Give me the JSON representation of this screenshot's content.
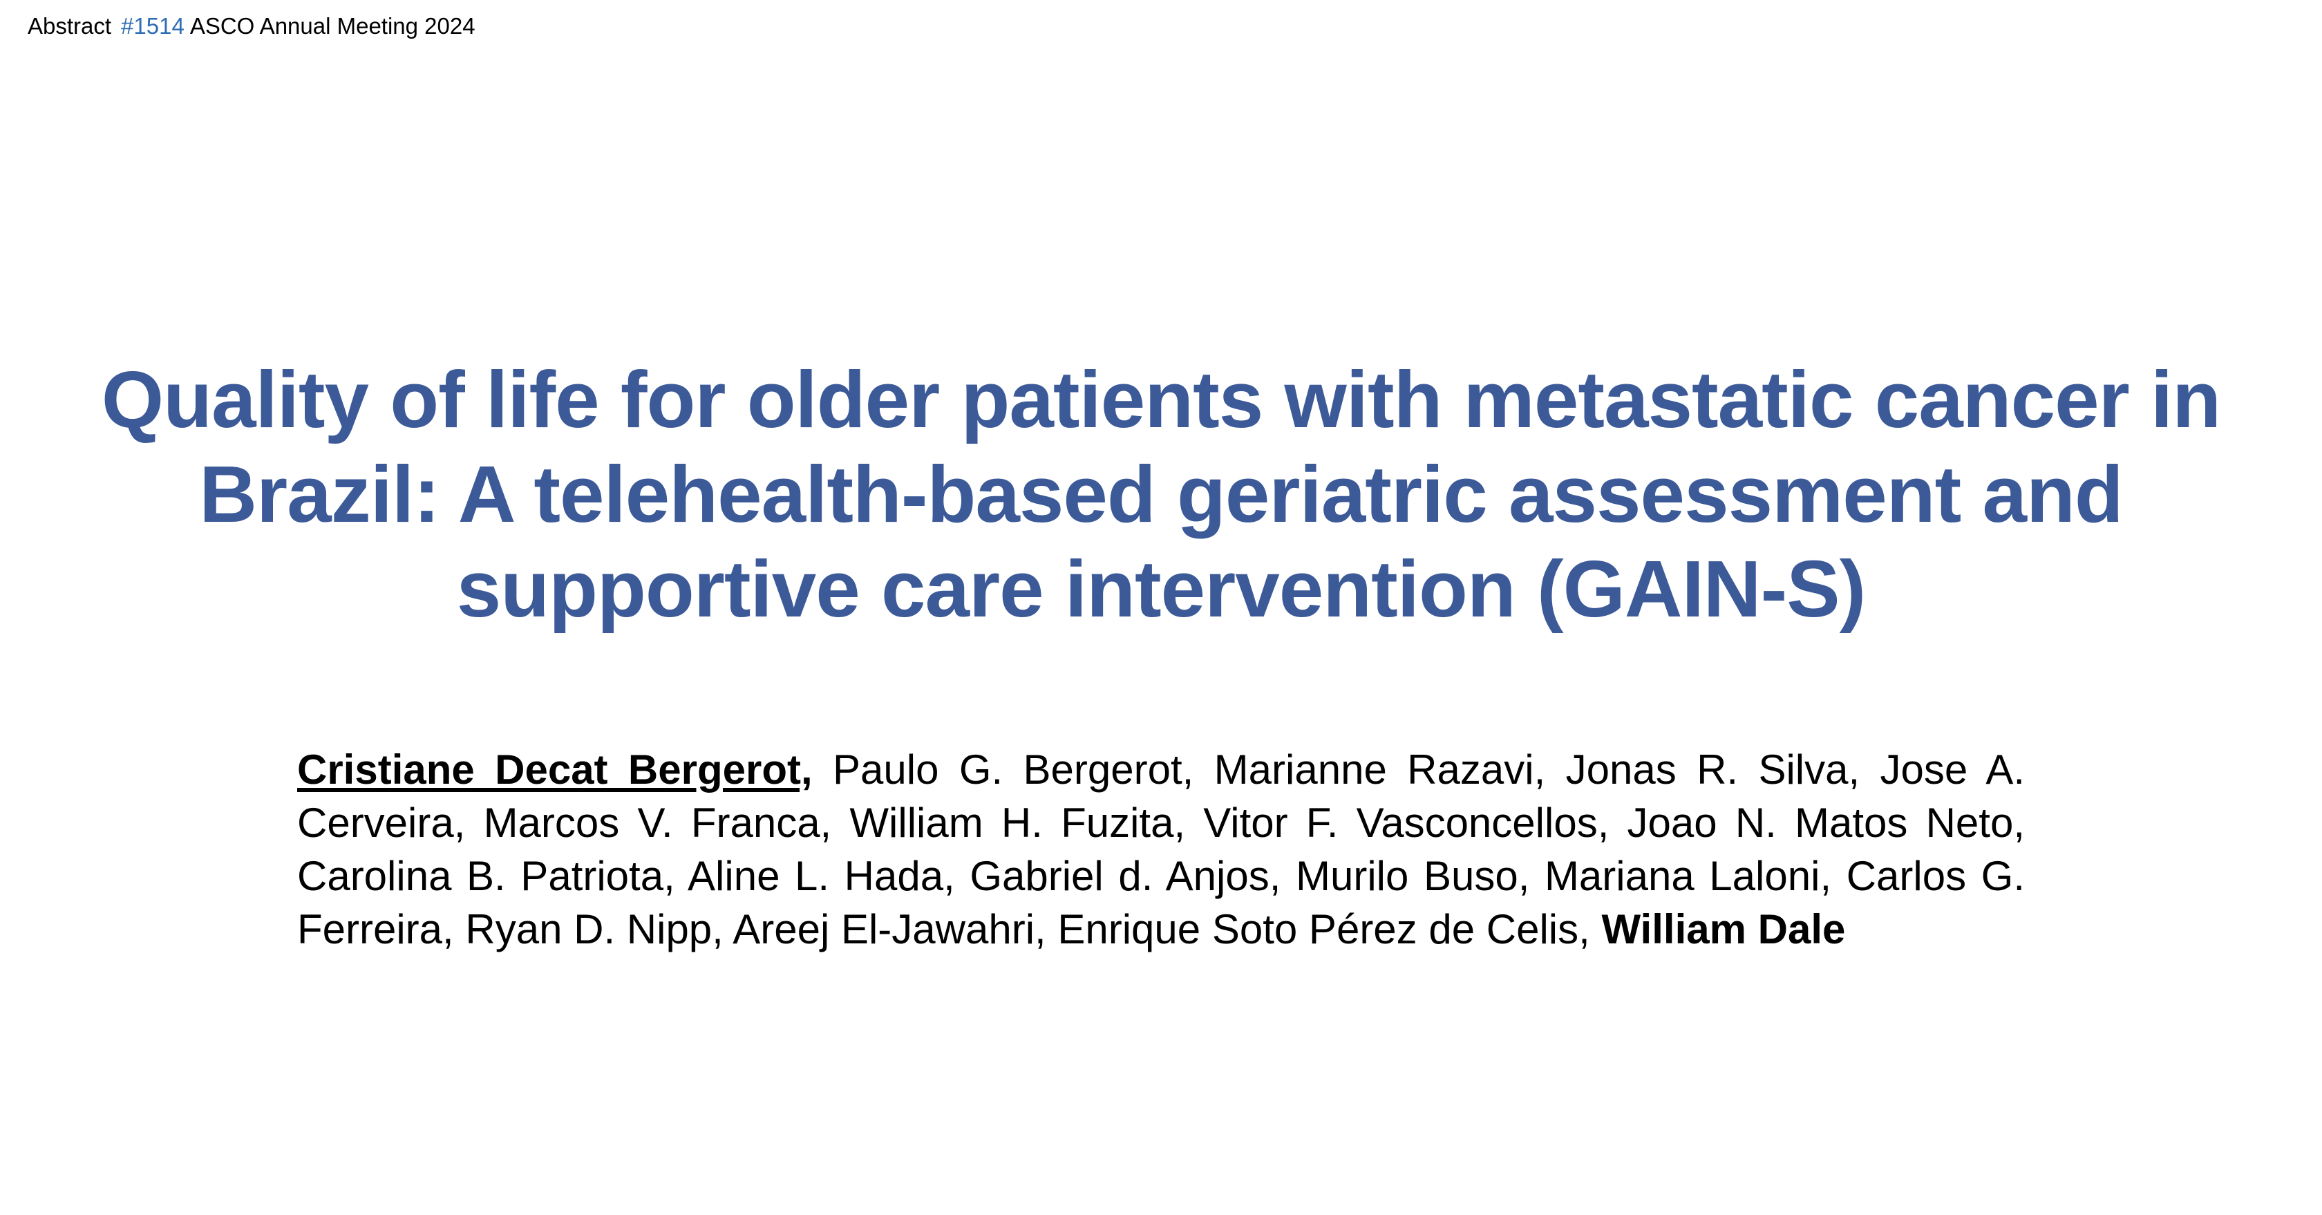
{
  "header": {
    "prefix": "Abstract",
    "abstract_number": "#1514",
    "meeting": "ASCO Annual Meeting 2024"
  },
  "title": {
    "line1": "Quality of life for older patients with metastatic cancer in",
    "line2": "Brazil: A telehealth-based geriatric assessment and",
    "line3": "supportive care intervention (GAIN-S)"
  },
  "authors": {
    "presenter": "Cristiane Decat Bergerot,",
    "others": "Paulo G. Bergerot, Marianne Razavi, Jonas R. Silva, Jose A. Cerveira, Marcos V. Franca, William H. Fuzita, Vitor F. Vasconcellos, Joao N. Matos Neto, Carolina B. Patriota, Aline L. Hada, Gabriel d. Anjos, Murilo Buso, Mariana Laloni, Carlos G. Ferreira, Ryan D. Nipp, Areej El-Jawahri, Enrique Soto Pérez de Celis,",
    "senior": "William Dale"
  },
  "colors": {
    "title": "#3c5a98",
    "abstract_number": "#2e6db4",
    "text": "#000000",
    "background": "#ffffff"
  }
}
